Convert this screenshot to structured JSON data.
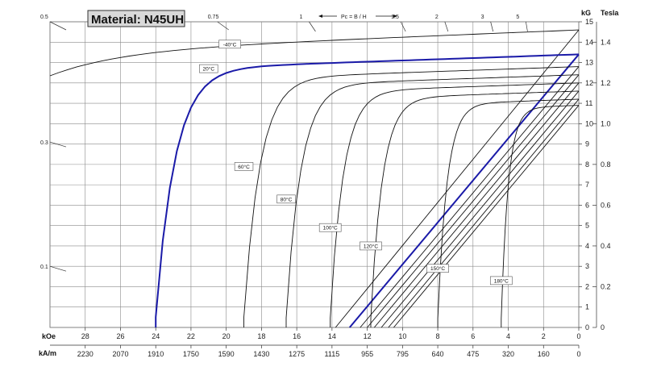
{
  "chart_data": {
    "type": "line",
    "title": "Material: N45UH",
    "pc_label": "Pc = B / H",
    "pc_values": [
      "0.5",
      "0.75",
      "1",
      "1.5",
      "2",
      "3",
      "5"
    ],
    "pc_left_values": [
      "0.5",
      "0.3",
      "0.1"
    ],
    "x_units": [
      "kOe",
      "kA/m"
    ],
    "x_koe_ticks": [
      "28",
      "26",
      "24",
      "22",
      "20",
      "18",
      "16",
      "14",
      "12",
      "10",
      "8",
      "6",
      "4",
      "2",
      "0"
    ],
    "x_kam_ticks": [
      "2230",
      "2070",
      "1910",
      "1750",
      "1590",
      "1430",
      "1275",
      "1115",
      "955",
      "795",
      "640",
      "475",
      "320",
      "160",
      "0"
    ],
    "y_units": [
      "kG",
      "Tesla"
    ],
    "y_kg_ticks": [
      "0",
      "1",
      "2",
      "3",
      "4",
      "5",
      "6",
      "7",
      "8",
      "9",
      "10",
      "11",
      "12",
      "13",
      "14",
      "15"
    ],
    "y_tesla_ticks": [
      "0",
      "0.2",
      "0.4",
      "0.6",
      "0.8",
      "1.0",
      "1.2",
      "1.4"
    ],
    "xlim_koe": [
      30,
      0
    ],
    "ylim_kg": [
      0,
      15
    ],
    "grid": true,
    "highlight_color": "#1a1aa8",
    "curve_color": "#111111",
    "curves": [
      {
        "temp": "-40°C",
        "Br": 14.6,
        "HcJ": null,
        "label_at": [
          19.8,
          13.9
        ]
      },
      {
        "temp": "20°C",
        "Br": 13.4,
        "HcJ": 24.0,
        "label_at": [
          21.0,
          12.7
        ],
        "highlight": true
      },
      {
        "temp": "60°C",
        "Br": 12.8,
        "HcJ": 19.0,
        "label_at": [
          19.0,
          7.9
        ]
      },
      {
        "temp": "80°C",
        "Br": 12.4,
        "HcJ": 16.6,
        "label_at": [
          16.6,
          6.3
        ]
      },
      {
        "temp": "100°C",
        "Br": 12.0,
        "HcJ": 14.1,
        "label_at": [
          14.1,
          4.9
        ]
      },
      {
        "temp": "120°C",
        "Br": 11.6,
        "HcJ": 11.8,
        "label_at": [
          11.8,
          4.0
        ]
      },
      {
        "temp": "150°C",
        "Br": 11.2,
        "HcJ": 8.0,
        "label_at": [
          8.0,
          2.9
        ]
      },
      {
        "temp": "180°C",
        "Br": 10.9,
        "HcJ": 4.4,
        "label_at": [
          4.4,
          2.3
        ]
      }
    ],
    "normal_lines": [
      {
        "Br": 14.6,
        "Hc": 13.8
      },
      {
        "Br": 13.4,
        "Hc": 13.0,
        "highlight": true
      },
      {
        "Br": 12.8,
        "Hc": 12.4
      },
      {
        "Br": 12.4,
        "Hc": 12.0
      },
      {
        "Br": 12.0,
        "Hc": 11.6
      },
      {
        "Br": 11.6,
        "Hc": 11.2
      },
      {
        "Br": 11.2,
        "Hc": 10.8
      },
      {
        "Br": 10.9,
        "Hc": 10.5
      }
    ]
  }
}
